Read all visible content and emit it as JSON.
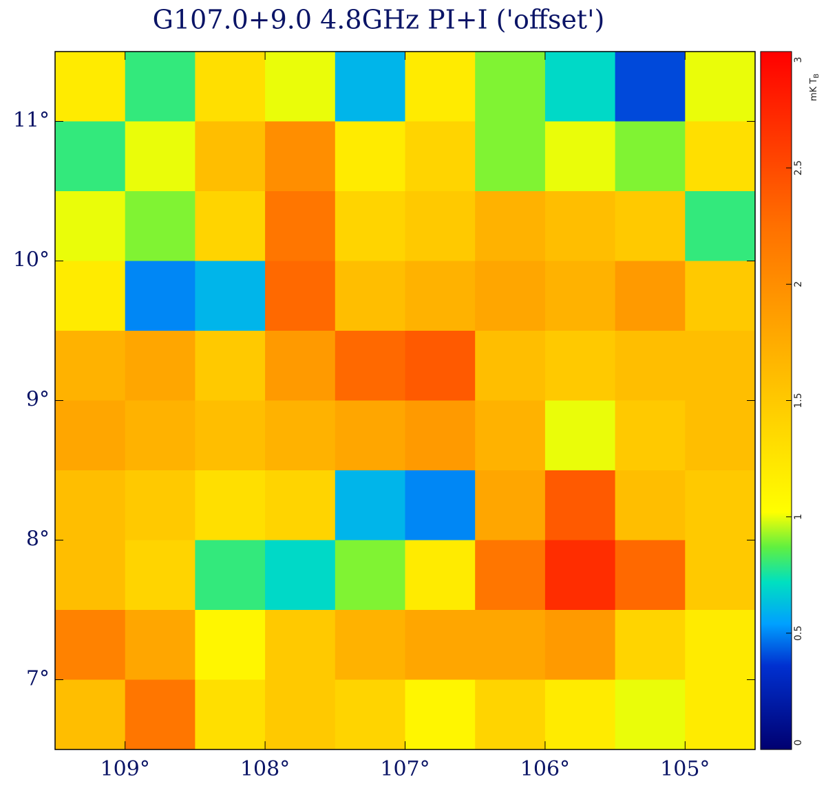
{
  "chart_data": {
    "type": "heatmap",
    "title": "G107.0+9.0 4.8GHz PI+I ('offset')",
    "xlim": [
      109.5,
      104.5
    ],
    "ylim": [
      6.5,
      11.5
    ],
    "xticks": [
      {
        "value": 109,
        "label": "109°"
      },
      {
        "value": 108,
        "label": "108°"
      },
      {
        "value": 107,
        "label": "107°"
      },
      {
        "value": 106,
        "label": "106°"
      },
      {
        "value": 105,
        "label": "105°"
      }
    ],
    "yticks": [
      {
        "value": 7,
        "label": "7°"
      },
      {
        "value": 8,
        "label": "8°"
      },
      {
        "value": 9,
        "label": "9°"
      },
      {
        "value": 10,
        "label": "10°"
      },
      {
        "value": 11,
        "label": "11°"
      }
    ],
    "zlim": [
      0,
      3
    ],
    "zticks": [
      0,
      0.5,
      1,
      1.5,
      2,
      2.5,
      3
    ],
    "colorbar_label": "mK T",
    "colorbar_label_sub": "B",
    "colorscale": [
      [
        0,
        "#000070"
      ],
      [
        0.12,
        "#0030d0"
      ],
      [
        0.18,
        "#00a0ff"
      ],
      [
        0.24,
        "#00e0c0"
      ],
      [
        0.29,
        "#60f040"
      ],
      [
        0.34,
        "#ffff00"
      ],
      [
        0.55,
        "#ffb800"
      ],
      [
        0.75,
        "#ff7000"
      ],
      [
        1,
        "#ff0000"
      ]
    ],
    "text_color": "#0a1466",
    "z": [
      [
        1.2,
        0.8,
        1.3,
        1.0,
        0.6,
        1.2,
        0.9,
        0.7,
        0.4,
        1.0
      ],
      [
        0.8,
        1.0,
        1.6,
        2.0,
        1.2,
        1.4,
        0.9,
        1.0,
        0.9,
        1.3
      ],
      [
        1.0,
        0.9,
        1.4,
        2.2,
        1.4,
        1.5,
        1.7,
        1.6,
        1.5,
        0.8
      ],
      [
        1.2,
        0.5,
        0.6,
        2.3,
        1.6,
        1.7,
        1.8,
        1.7,
        1.9,
        1.5
      ],
      [
        1.7,
        1.8,
        1.5,
        1.9,
        2.3,
        2.4,
        1.6,
        1.5,
        1.6,
        1.6
      ],
      [
        1.8,
        1.7,
        1.6,
        1.7,
        1.8,
        1.9,
        1.7,
        1.0,
        1.5,
        1.6
      ],
      [
        1.6,
        1.5,
        1.3,
        1.4,
        0.6,
        0.5,
        1.8,
        2.4,
        1.6,
        1.5
      ],
      [
        1.6,
        1.4,
        0.8,
        0.7,
        0.9,
        1.2,
        2.2,
        2.7,
        2.3,
        1.5
      ],
      [
        2.1,
        1.8,
        1.1,
        1.5,
        1.7,
        1.8,
        1.8,
        1.9,
        1.4,
        1.2
      ],
      [
        1.6,
        2.2,
        1.3,
        1.5,
        1.4,
        1.1,
        1.4,
        1.2,
        1.0,
        1.2
      ]
    ]
  }
}
